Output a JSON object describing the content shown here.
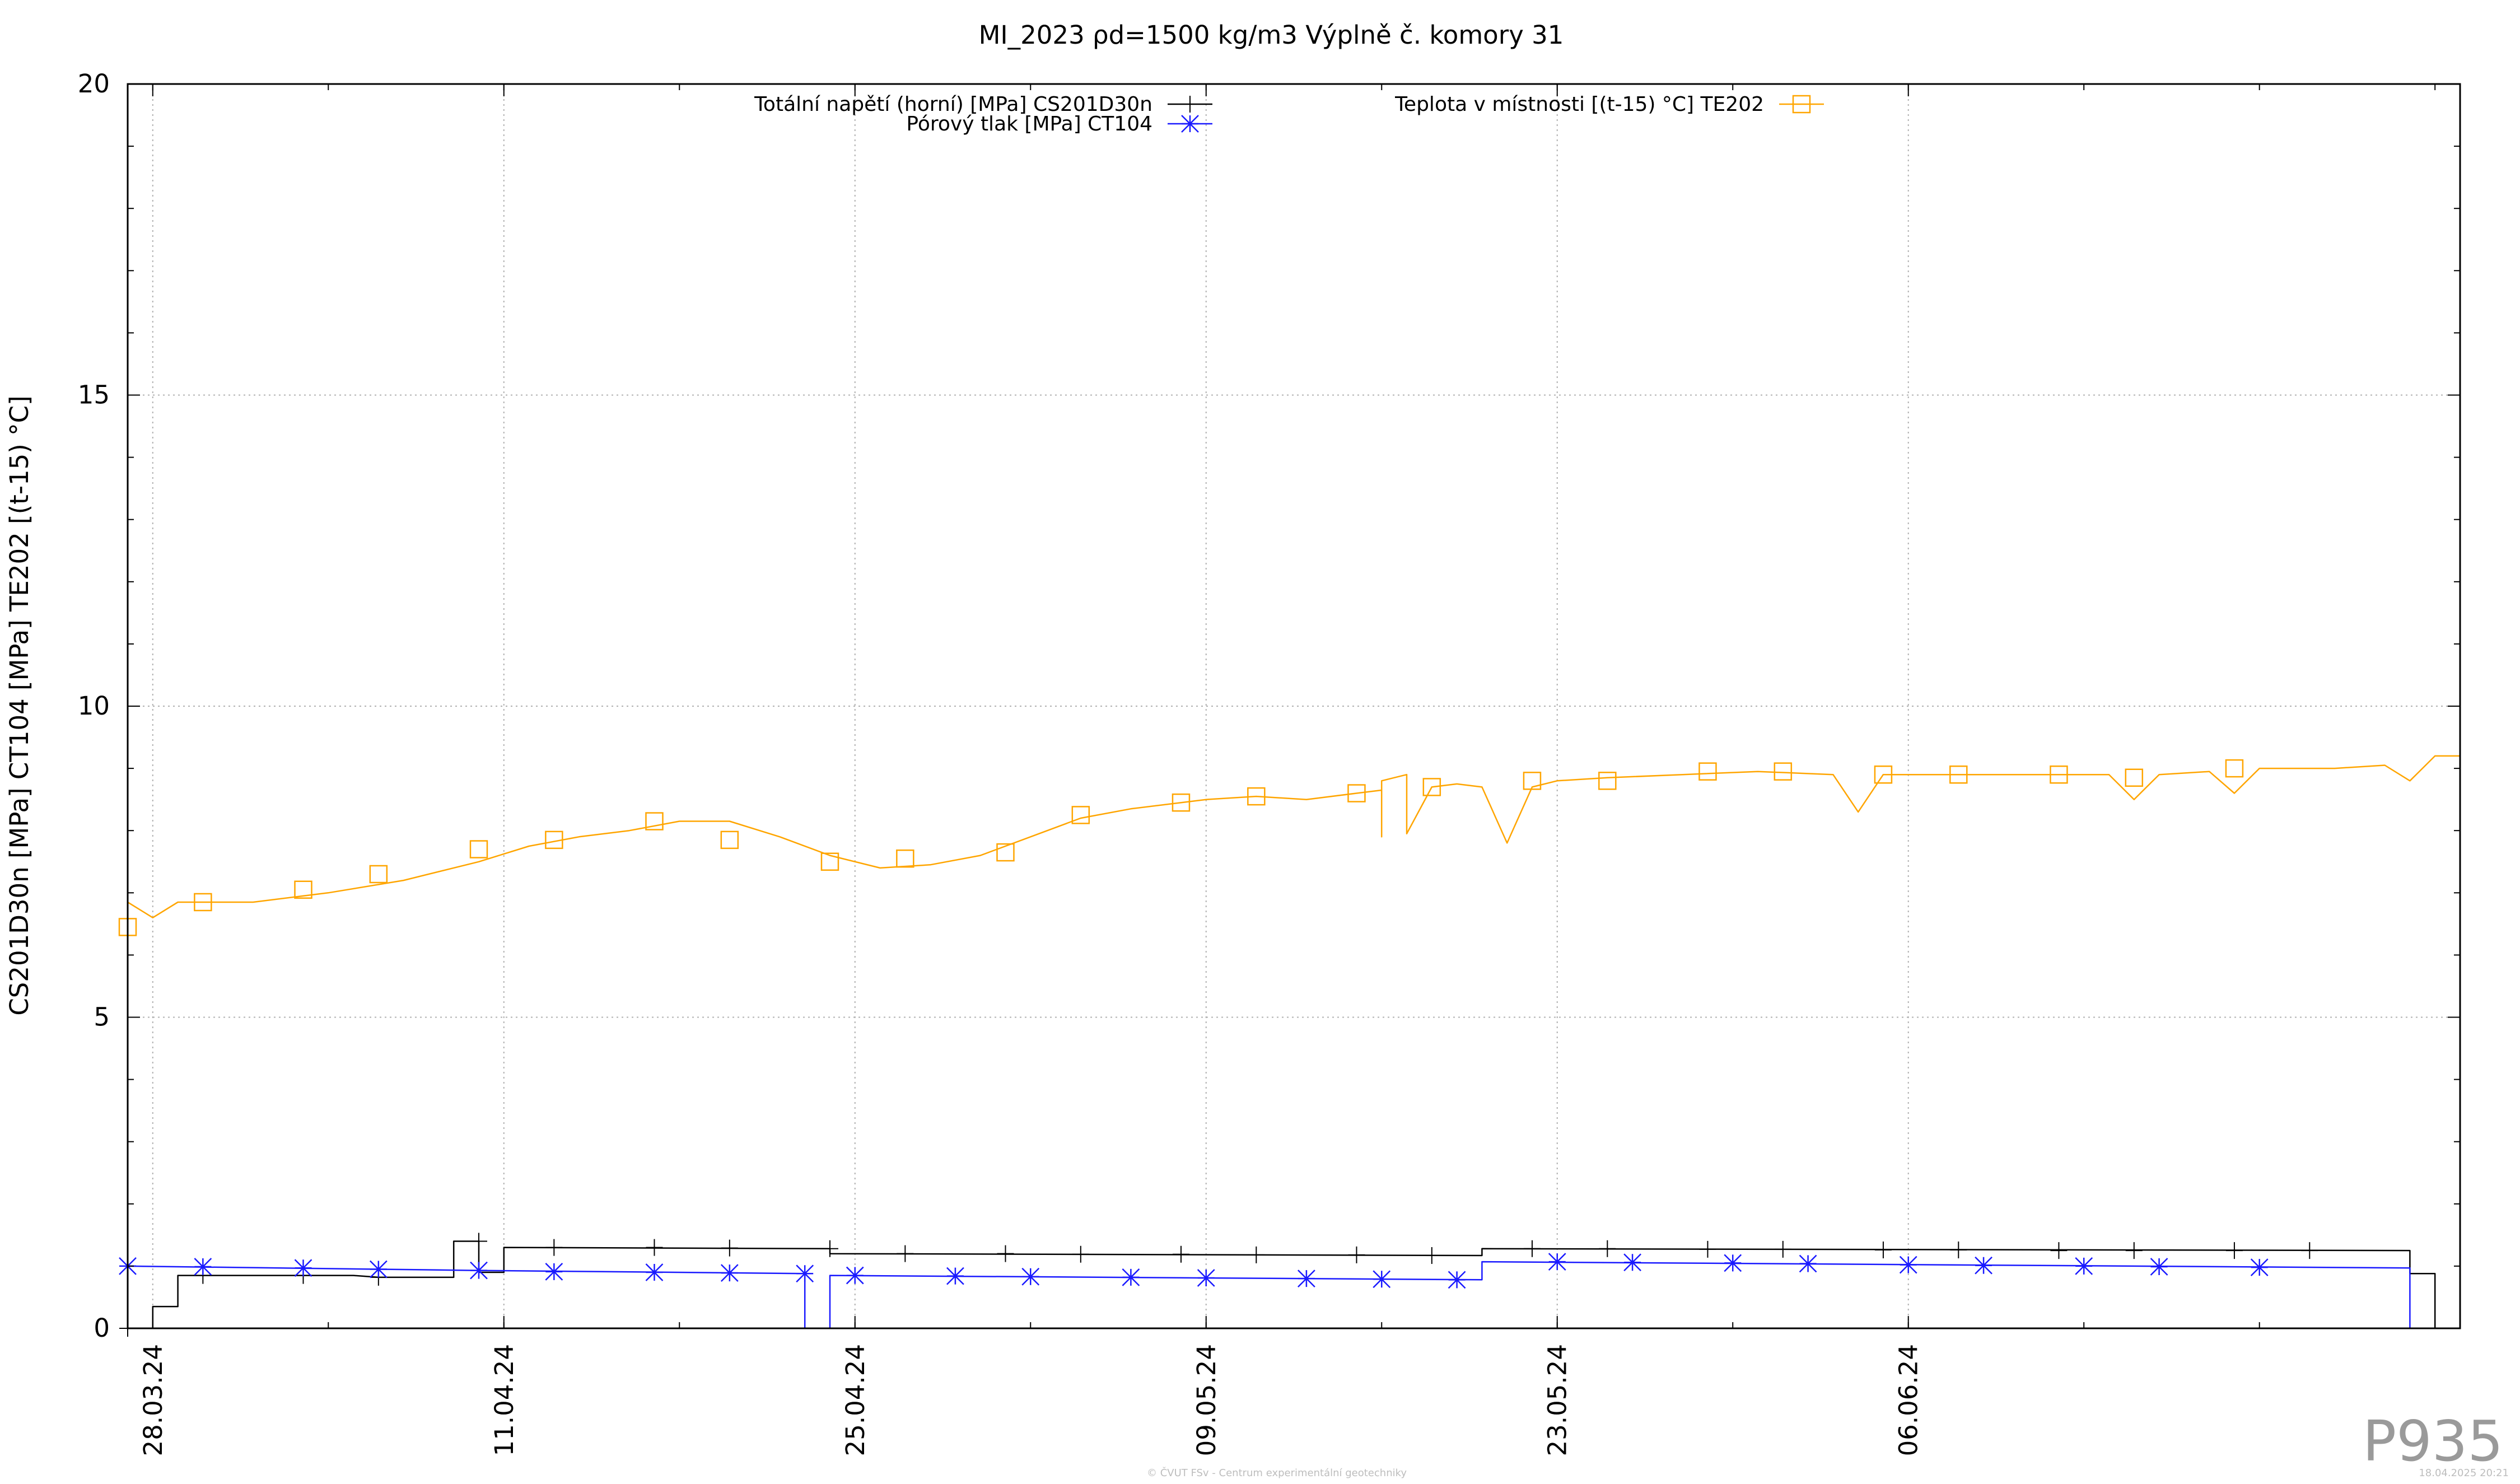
{
  "chart_data": {
    "type": "line",
    "title": "MI_2023 ρd=1500 kg/m3 Výplně č. komory 31",
    "ylabel": "CS201D30n [MPa] CT104 [MPa] TE202 [(t-15) °C]",
    "xlabel": "",
    "ylim": [
      0,
      20
    ],
    "y_ticks": [
      "0",
      "5",
      "10",
      "15",
      "20"
    ],
    "y_tick_values": [
      0,
      5,
      10,
      15,
      20
    ],
    "x_range": [
      "2024-03-27",
      "2024-06-28"
    ],
    "x_ticks": [
      "28.03.24",
      "11.04.24",
      "25.04.24",
      "09.05.24",
      "23.05.24",
      "06.06.24"
    ],
    "x_tick_dates": [
      "2024-03-28",
      "2024-04-11",
      "2024-04-25",
      "2024-05-09",
      "2024-05-23",
      "2024-06-06"
    ],
    "grid": true,
    "legend_placement": "top",
    "series": [
      {
        "name": "Totální napětí (horní) [MPa] CS201D30n",
        "color": "#000000",
        "marker": "plus",
        "step": true,
        "points": [
          [
            "2024-03-27",
            0.0
          ],
          [
            "2024-03-28",
            0.0
          ],
          [
            "2024-03-28",
            0.35
          ],
          [
            "2024-03-29",
            0.35
          ],
          [
            "2024-03-29",
            0.85
          ],
          [
            "2024-04-05",
            0.85
          ],
          [
            "2024-04-06",
            0.82
          ],
          [
            "2024-04-09",
            0.82
          ],
          [
            "2024-04-09",
            1.4
          ],
          [
            "2024-04-10",
            1.4
          ],
          [
            "2024-04-10",
            0.9
          ],
          [
            "2024-04-11",
            0.9
          ],
          [
            "2024-04-11",
            1.3
          ],
          [
            "2024-04-24",
            1.28
          ],
          [
            "2024-04-24",
            1.2
          ],
          [
            "2024-05-20",
            1.17
          ],
          [
            "2024-05-20",
            1.28
          ],
          [
            "2024-06-26",
            1.25
          ],
          [
            "2024-06-26",
            0.88
          ],
          [
            "2024-06-27",
            0.88
          ],
          [
            "2024-06-27",
            0.0
          ],
          [
            "2024-06-28",
            0.0
          ]
        ],
        "markers": [
          [
            "2024-03-27",
            0.0
          ],
          [
            "2024-03-30",
            0.85
          ],
          [
            "2024-04-03",
            0.85
          ],
          [
            "2024-04-06",
            0.82
          ],
          [
            "2024-04-10",
            1.4
          ],
          [
            "2024-04-13",
            1.3
          ],
          [
            "2024-04-17",
            1.3
          ],
          [
            "2024-04-20",
            1.29
          ],
          [
            "2024-04-24",
            1.28
          ],
          [
            "2024-04-27",
            1.2
          ],
          [
            "2024-05-01",
            1.2
          ],
          [
            "2024-05-04",
            1.19
          ],
          [
            "2024-05-08",
            1.19
          ],
          [
            "2024-05-11",
            1.18
          ],
          [
            "2024-05-15",
            1.18
          ],
          [
            "2024-05-18",
            1.17
          ],
          [
            "2024-05-22",
            1.28
          ],
          [
            "2024-05-25",
            1.28
          ],
          [
            "2024-05-29",
            1.27
          ],
          [
            "2024-06-01",
            1.27
          ],
          [
            "2024-06-05",
            1.26
          ],
          [
            "2024-06-08",
            1.26
          ],
          [
            "2024-06-12",
            1.25
          ],
          [
            "2024-06-15",
            1.25
          ],
          [
            "2024-06-19",
            1.25
          ],
          [
            "2024-06-22",
            1.25
          ]
        ]
      },
      {
        "name": "Pórový tlak [MPa] CT104",
        "color": "#1a1aff",
        "marker": "star",
        "step": true,
        "points": [
          [
            "2024-03-27",
            1.0
          ],
          [
            "2024-04-10",
            0.93
          ],
          [
            "2024-04-23",
            0.88
          ],
          [
            "2024-04-23",
            0.0
          ],
          [
            "2024-04-24",
            0.0
          ],
          [
            "2024-04-24",
            0.85
          ],
          [
            "2024-05-20",
            0.78
          ],
          [
            "2024-05-20",
            1.07
          ],
          [
            "2024-06-26",
            0.97
          ],
          [
            "2024-06-26",
            0.0
          ],
          [
            "2024-06-28",
            0.0
          ]
        ],
        "markers": [
          [
            "2024-03-27",
            1.0
          ],
          [
            "2024-03-30",
            0.99
          ],
          [
            "2024-04-03",
            0.97
          ],
          [
            "2024-04-06",
            0.95
          ],
          [
            "2024-04-10",
            0.93
          ],
          [
            "2024-04-13",
            0.91
          ],
          [
            "2024-04-17",
            0.9
          ],
          [
            "2024-04-20",
            0.89
          ],
          [
            "2024-04-23",
            0.88
          ],
          [
            "2024-04-25",
            0.85
          ],
          [
            "2024-04-29",
            0.84
          ],
          [
            "2024-05-02",
            0.83
          ],
          [
            "2024-05-06",
            0.82
          ],
          [
            "2024-05-09",
            0.81
          ],
          [
            "2024-05-13",
            0.8
          ],
          [
            "2024-05-16",
            0.79
          ],
          [
            "2024-05-19",
            0.78
          ],
          [
            "2024-05-23",
            1.07
          ],
          [
            "2024-05-26",
            1.06
          ],
          [
            "2024-05-30",
            1.05
          ],
          [
            "2024-06-02",
            1.04
          ],
          [
            "2024-06-06",
            1.02
          ],
          [
            "2024-06-09",
            1.01
          ],
          [
            "2024-06-13",
            1.0
          ],
          [
            "2024-06-16",
            0.99
          ],
          [
            "2024-06-20",
            0.98
          ]
        ]
      },
      {
        "name": "Teplota v místnosti [(t-15) °C] TE202",
        "color": "#ffa500",
        "marker": "square",
        "step": false,
        "points": [
          [
            "2024-03-27",
            6.45
          ],
          [
            "2024-03-27",
            6.85
          ],
          [
            "2024-03-28",
            6.6
          ],
          [
            "2024-03-29",
            6.85
          ],
          [
            "2024-04-01",
            6.85
          ],
          [
            "2024-04-04",
            7.0
          ],
          [
            "2024-04-07",
            7.2
          ],
          [
            "2024-04-10",
            7.5
          ],
          [
            "2024-04-12",
            7.75
          ],
          [
            "2024-04-14",
            7.9
          ],
          [
            "2024-04-16",
            8.0
          ],
          [
            "2024-04-18",
            8.15
          ],
          [
            "2024-04-20",
            8.15
          ],
          [
            "2024-04-22",
            7.9
          ],
          [
            "2024-04-24",
            7.6
          ],
          [
            "2024-04-26",
            7.4
          ],
          [
            "2024-04-28",
            7.45
          ],
          [
            "2024-04-30",
            7.6
          ],
          [
            "2024-05-02",
            7.9
          ],
          [
            "2024-05-04",
            8.2
          ],
          [
            "2024-05-06",
            8.35
          ],
          [
            "2024-05-09",
            8.5
          ],
          [
            "2024-05-11",
            8.55
          ],
          [
            "2024-05-13",
            8.5
          ],
          [
            "2024-05-15",
            8.6
          ],
          [
            "2024-05-16",
            8.65
          ],
          [
            "2024-05-16",
            7.9
          ],
          [
            "2024-05-16",
            8.8
          ],
          [
            "2024-05-17",
            8.9
          ],
          [
            "2024-05-17",
            7.95
          ],
          [
            "2024-05-18",
            8.7
          ],
          [
            "2024-05-19",
            8.75
          ],
          [
            "2024-05-20",
            8.7
          ],
          [
            "2024-05-21",
            7.8
          ],
          [
            "2024-05-22",
            8.7
          ],
          [
            "2024-05-23",
            8.8
          ],
          [
            "2024-05-25",
            8.85
          ],
          [
            "2024-05-28",
            8.9
          ],
          [
            "2024-05-31",
            8.95
          ],
          [
            "2024-06-03",
            8.9
          ],
          [
            "2024-06-04",
            8.3
          ],
          [
            "2024-06-05",
            8.9
          ],
          [
            "2024-06-08",
            8.9
          ],
          [
            "2024-06-11",
            8.9
          ],
          [
            "2024-06-14",
            8.9
          ],
          [
            "2024-06-15",
            8.5
          ],
          [
            "2024-06-16",
            8.9
          ],
          [
            "2024-06-18",
            8.95
          ],
          [
            "2024-06-19",
            8.6
          ],
          [
            "2024-06-20",
            9.0
          ],
          [
            "2024-06-23",
            9.0
          ],
          [
            "2024-06-25",
            9.05
          ],
          [
            "2024-06-26",
            8.8
          ],
          [
            "2024-06-27",
            9.2
          ],
          [
            "2024-06-28",
            9.2
          ]
        ],
        "markers": [
          [
            "2024-03-27",
            6.45
          ],
          [
            "2024-03-30",
            6.85
          ],
          [
            "2024-04-03",
            7.05
          ],
          [
            "2024-04-06",
            7.3
          ],
          [
            "2024-04-10",
            7.7
          ],
          [
            "2024-04-13",
            7.85
          ],
          [
            "2024-04-17",
            8.15
          ],
          [
            "2024-04-20",
            7.85
          ],
          [
            "2024-04-24",
            7.5
          ],
          [
            "2024-04-27",
            7.55
          ],
          [
            "2024-05-01",
            7.65
          ],
          [
            "2024-05-04",
            8.25
          ],
          [
            "2024-05-08",
            8.45
          ],
          [
            "2024-05-11",
            8.55
          ],
          [
            "2024-05-15",
            8.6
          ],
          [
            "2024-05-18",
            8.7
          ],
          [
            "2024-05-22",
            8.8
          ],
          [
            "2024-05-25",
            8.8
          ],
          [
            "2024-05-29",
            8.95
          ],
          [
            "2024-06-01",
            8.95
          ],
          [
            "2024-06-05",
            8.9
          ],
          [
            "2024-06-08",
            8.9
          ],
          [
            "2024-06-12",
            8.9
          ],
          [
            "2024-06-15",
            8.85
          ],
          [
            "2024-06-19",
            9.0
          ]
        ]
      }
    ]
  },
  "footer": {
    "credit": "© ČVUT FSv - Centrum experimentální geotechniky",
    "date": "18.04.2025 20:21",
    "stamp": "P935"
  }
}
